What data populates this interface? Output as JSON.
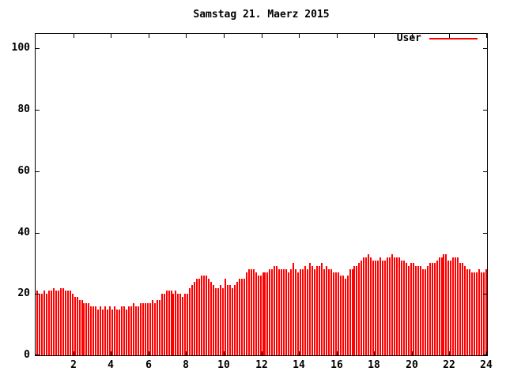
{
  "chart_data": {
    "type": "bar",
    "title": "Samstag 21. Maerz 2015",
    "xlabel": "",
    "ylabel": "",
    "xlim": [
      0,
      24
    ],
    "ylim": [
      0,
      105
    ],
    "xticks": [
      2,
      4,
      6,
      8,
      10,
      12,
      14,
      16,
      18,
      20,
      22,
      24
    ],
    "yticks": [
      0,
      20,
      40,
      60,
      80,
      100
    ],
    "grid": "off",
    "legend_position": "top-right",
    "bar_color": "#ff0000",
    "x_unit": "hour of day",
    "x_start": 0,
    "x_step_hours": 0.125,
    "series": [
      {
        "name": "User",
        "color": "#ff0000",
        "values": [
          21,
          20,
          20,
          21,
          20,
          21,
          21,
          22,
          21,
          21,
          22,
          22,
          21,
          21,
          21,
          20,
          19,
          19,
          18,
          18,
          17,
          17,
          17,
          16,
          16,
          16,
          15,
          16,
          15,
          16,
          15,
          16,
          15,
          16,
          15,
          15,
          16,
          16,
          15,
          16,
          16,
          17,
          16,
          16,
          17,
          17,
          17,
          17,
          17,
          18,
          17,
          18,
          18,
          20,
          20,
          21,
          21,
          21,
          20,
          21,
          20,
          20,
          19,
          20,
          20,
          22,
          23,
          24,
          25,
          25,
          26,
          26,
          26,
          25,
          24,
          23,
          22,
          22,
          23,
          22,
          25,
          23,
          23,
          22,
          23,
          24,
          25,
          25,
          25,
          27,
          28,
          28,
          28,
          27,
          26,
          26,
          27,
          27,
          27,
          28,
          28,
          29,
          29,
          28,
          28,
          28,
          28,
          27,
          28,
          30,
          28,
          27,
          28,
          28,
          29,
          28,
          30,
          29,
          28,
          29,
          29,
          30,
          28,
          29,
          28,
          28,
          27,
          27,
          27,
          26,
          26,
          25,
          26,
          28,
          28,
          29,
          29,
          30,
          31,
          32,
          32,
          33,
          32,
          31,
          31,
          31,
          32,
          31,
          31,
          32,
          32,
          33,
          32,
          32,
          32,
          31,
          31,
          30,
          29,
          30,
          30,
          29,
          29,
          29,
          28,
          28,
          29,
          30,
          30,
          30,
          31,
          32,
          32,
          33,
          33,
          31,
          31,
          32,
          32,
          32,
          30,
          30,
          29,
          28,
          28,
          27,
          27,
          27,
          28,
          27,
          27,
          28
        ]
      }
    ]
  }
}
